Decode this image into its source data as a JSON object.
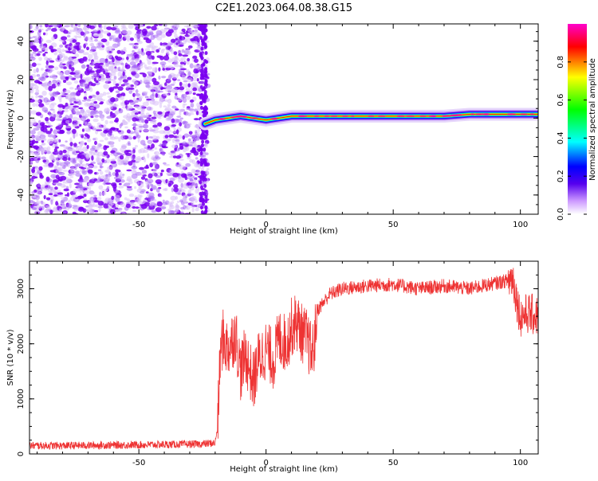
{
  "title": "C2E1.2023.064.08.38.G15",
  "colorbar": {
    "label": "Normalized spectral amplitude",
    "ticks": [
      0.0,
      0.2,
      0.4,
      0.6,
      0.8
    ],
    "tick_labels": [
      "0.0",
      "0.2",
      "0.4",
      "0.6",
      "0.8"
    ],
    "range": [
      0,
      1
    ]
  },
  "colors": {
    "snr_line": "#ee3333",
    "noise_purple": "#7a00f0",
    "noise_light": "#d8bff8",
    "colormap": [
      "#ffffff",
      "#cc99ff",
      "#5500ee",
      "#0000ff",
      "#00ffff",
      "#00ff00",
      "#ffff00",
      "#ff0000",
      "#ff00cc"
    ]
  },
  "chart_data": [
    {
      "type": "heatmap",
      "xlabel": "Height of straight line (km)",
      "ylabel": "Frequency (Hz)",
      "xlim": [
        -93,
        107
      ],
      "ylim": [
        -50,
        49
      ],
      "xticks": [
        -50,
        0,
        50,
        100
      ],
      "xtick_labels": [
        "-50",
        "0",
        "50",
        "100"
      ],
      "yticks": [
        -40,
        -20,
        0,
        20,
        40
      ],
      "ytick_labels": [
        "-40",
        "-20",
        "0",
        "20",
        "40"
      ],
      "noise_region_x": [
        -93,
        -24
      ],
      "signal_region_x": [
        -24,
        107
      ],
      "signal_track": {
        "x": [
          -24,
          -20,
          -15,
          -10,
          -5,
          0,
          5,
          10,
          15,
          20,
          30,
          40,
          50,
          60,
          70,
          80,
          90,
          100,
          107
        ],
        "frequency": [
          -3,
          -1,
          0,
          1,
          0,
          -1,
          0,
          1,
          1,
          1,
          1,
          1,
          1,
          1,
          1,
          2,
          2,
          2,
          2
        ]
      }
    },
    {
      "type": "line",
      "xlabel": "Height of straight line (km)",
      "ylabel": "SNR (10 * v/v)",
      "xlim": [
        -93,
        107
      ],
      "ylim": [
        0,
        3500
      ],
      "xticks": [
        -50,
        0,
        50,
        100
      ],
      "xtick_labels": [
        "-50",
        "0",
        "50",
        "100"
      ],
      "yticks": [
        0,
        1000,
        2000,
        3000
      ],
      "ytick_labels": [
        "0",
        "1000",
        "2000",
        "3000"
      ],
      "series": [
        {
          "x": [
            -93,
            -80,
            -60,
            -40,
            -25,
            -20,
            -19,
            -18,
            -17,
            -15,
            -12,
            -10,
            -8,
            -5,
            -3,
            0,
            3,
            5,
            8,
            10,
            12,
            14,
            16,
            18,
            19,
            20,
            25,
            30,
            40,
            50,
            60,
            70,
            80,
            90,
            95,
            97,
            99,
            100,
            103,
            107
          ],
          "values": [
            150,
            150,
            160,
            170,
            180,
            200,
            500,
            1800,
            2100,
            1900,
            2200,
            1500,
            1800,
            1300,
            1700,
            1900,
            1700,
            2100,
            2000,
            2300,
            2400,
            2200,
            2100,
            1800,
            2000,
            2600,
            2900,
            3000,
            3050,
            3080,
            3000,
            3050,
            3000,
            3100,
            3150,
            3200,
            2700,
            2500,
            2550,
            2500
          ]
        }
      ]
    }
  ]
}
